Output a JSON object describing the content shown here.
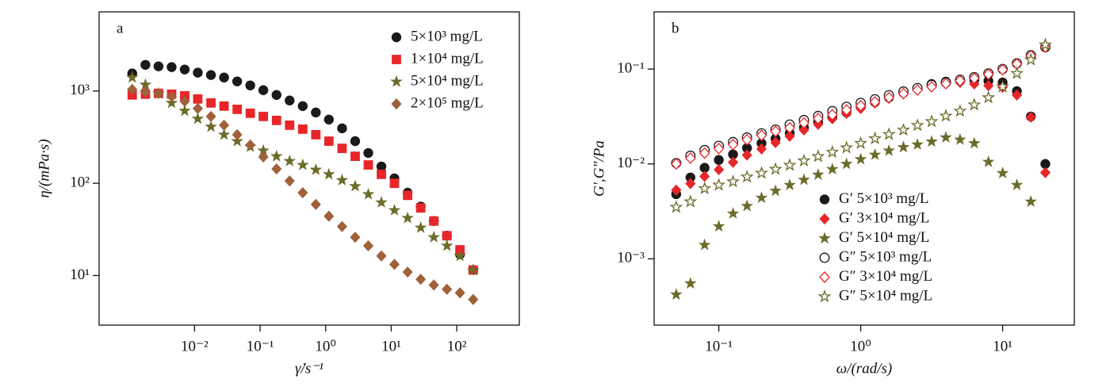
{
  "chart_data": [
    {
      "type": "scatter",
      "title": "a",
      "x_label": "γ̇/s⁻¹",
      "y_label": "η/(mPa·s)",
      "xscale": "log",
      "yscale": "log",
      "legend": "upper right",
      "xlim": [
        0.00035,
        900
      ],
      "ylim": [
        2.9,
        7200
      ],
      "xticks": [
        {
          "value": 0.01,
          "label": "10⁻²"
        },
        {
          "value": 0.1,
          "label": "10⁻¹"
        },
        {
          "value": 1,
          "label": "10⁰"
        },
        {
          "value": 10,
          "label": "10¹"
        },
        {
          "value": 100,
          "label": "10²"
        }
      ],
      "yticks": [
        {
          "value": 10,
          "label": "10¹"
        },
        {
          "value": 100,
          "label": "10²"
        },
        {
          "value": 1000,
          "label": "10³"
        }
      ],
      "x": [
        0.00112,
        0.00178,
        0.00282,
        0.00447,
        0.00708,
        0.0112,
        0.0178,
        0.0282,
        0.0447,
        0.0708,
        0.112,
        0.178,
        0.282,
        0.447,
        0.708,
        1.12,
        1.78,
        2.82,
        4.47,
        7.08,
        11.2,
        17.8,
        28.2,
        44.7,
        70.8,
        112,
        178
      ],
      "series": [
        {
          "name": "5×10³ mg/L",
          "color": "#1a1a1a",
          "marker": "circle",
          "filled": true,
          "values": [
            1550,
            1920,
            1850,
            1815,
            1710,
            1580,
            1490,
            1400,
            1270,
            1150,
            1020,
            906,
            789,
            686,
            585,
            490,
            394,
            286,
            213,
            152,
            113,
            79,
            56,
            39,
            27,
            17,
            11.5
          ]
        },
        {
          "name": "1×10⁴ mg/L",
          "color": "#e8262a",
          "marker": "square",
          "filled": true,
          "values": [
            906,
            924,
            943,
            924,
            887,
            820,
            743,
            686,
            633,
            574,
            530,
            480,
            426,
            386,
            336,
            286,
            239,
            196,
            158,
            125,
            100,
            74,
            54,
            39,
            27,
            19,
            11.5
          ]
        },
        {
          "name": "5×10⁴ mg/L",
          "color": "#6b6b2a",
          "marker": "star",
          "filled": true,
          "values": [
            1400,
            1170,
            943,
            743,
            609,
            500,
            410,
            336,
            286,
            249,
            226,
            196,
            174,
            158,
            140,
            125,
            108,
            93,
            76,
            62,
            51,
            42,
            33,
            26,
            21,
            16.3,
            11.5
          ]
        },
        {
          "name": "2×10⁵ mg/L",
          "color": "#a0603a",
          "marker": "diamond",
          "filled": true,
          "values": [
            1040,
            980,
            943,
            870,
            773,
            646,
            530,
            426,
            336,
            260,
            193,
            143,
            106,
            79,
            59,
            44,
            34,
            26,
            21,
            16.3,
            13.2,
            10.9,
            9.1,
            7.9,
            7.1,
            6.5,
            5.5
          ]
        }
      ]
    },
    {
      "type": "scatter",
      "title": "b",
      "x_label": "ω/(rad/s)",
      "y_label": "G′,G″/Pa",
      "xscale": "log",
      "yscale": "log",
      "legend": "lower center",
      "xlim": [
        0.035,
        32
      ],
      "ylim": [
        0.0002,
        0.4
      ],
      "xticks": [
        {
          "value": 0.1,
          "label": "10⁻¹"
        },
        {
          "value": 1,
          "label": "10⁰"
        },
        {
          "value": 10,
          "label": "10¹"
        }
      ],
      "yticks": [
        {
          "value": 0.001,
          "label": "10⁻³"
        },
        {
          "value": 0.01,
          "label": "10⁻²"
        },
        {
          "value": 0.1,
          "label": "10⁻¹"
        }
      ],
      "x": [
        0.0501,
        0.0631,
        0.0794,
        0.1,
        0.126,
        0.158,
        0.2,
        0.251,
        0.316,
        0.398,
        0.501,
        0.631,
        0.794,
        1,
        1.26,
        1.58,
        2,
        2.51,
        3.16,
        3.98,
        5.01,
        6.31,
        7.94,
        10,
        12.6,
        15.8,
        20
      ],
      "series": [
        {
          "name": "G′ 5×10³ mg/L",
          "color": "#1a1a1a",
          "marker": "circle",
          "filled": true,
          "values": [
            0.0048,
            0.0072,
            0.0091,
            0.011,
            0.0126,
            0.0147,
            0.0165,
            0.0185,
            0.0211,
            0.0242,
            0.0277,
            0.031,
            0.0348,
            0.0398,
            0.0447,
            0.0501,
            0.0562,
            0.0631,
            0.0695,
            0.0736,
            0.0764,
            0.0764,
            0.075,
            0.0722,
            0.0585,
            0.0316,
            0.01
          ]
        },
        {
          "name": "G′ 3×10⁴ mg/L",
          "color": "#e8262a",
          "marker": "diamond",
          "filled": true,
          "values": [
            0.0053,
            0.0062,
            0.0074,
            0.0087,
            0.0104,
            0.0124,
            0.0144,
            0.0168,
            0.0196,
            0.0228,
            0.0261,
            0.0299,
            0.0341,
            0.0383,
            0.0438,
            0.0492,
            0.0552,
            0.0607,
            0.0668,
            0.0708,
            0.0722,
            0.0695,
            0.0668,
            0.0643,
            0.0531,
            0.031,
            0.0081
          ]
        },
        {
          "name": "G′ 5×10⁴ mg/L",
          "color": "#6b6b2a",
          "marker": "star",
          "filled": true,
          "values": [
            0.00042,
            0.00055,
            0.0014,
            0.0022,
            0.003,
            0.0036,
            0.0044,
            0.0052,
            0.006,
            0.0068,
            0.0077,
            0.0088,
            0.01,
            0.0112,
            0.0125,
            0.0138,
            0.015,
            0.016,
            0.0172,
            0.019,
            0.018,
            0.0165,
            0.0105,
            0.008,
            0.006,
            0.004,
            null
          ]
        },
        {
          "name": "G″ 5×10³ mg/L",
          "color": "#1a1a1a",
          "marker": "circle",
          "filled": false,
          "values": [
            0.0102,
            0.0122,
            0.014,
            0.0155,
            0.017,
            0.019,
            0.021,
            0.023,
            0.026,
            0.029,
            0.032,
            0.036,
            0.04,
            0.044,
            0.048,
            0.053,
            0.058,
            0.063,
            0.068,
            0.072,
            0.077,
            0.082,
            0.09,
            0.1,
            0.115,
            0.14,
            0.17
          ]
        },
        {
          "name": "G″ 3×10⁴ mg/L",
          "color": "#e8262a",
          "marker": "diamond",
          "filled": false,
          "values": [
            0.01,
            0.0115,
            0.013,
            0.0145,
            0.016,
            0.018,
            0.02,
            0.022,
            0.024,
            0.027,
            0.03,
            0.033,
            0.037,
            0.041,
            0.045,
            0.05,
            0.055,
            0.06,
            0.065,
            0.07,
            0.075,
            0.08,
            0.088,
            0.098,
            0.113,
            0.138,
            0.17
          ]
        },
        {
          "name": "G″ 5×10⁴ mg/L",
          "color": "#6b6b2a",
          "marker": "star",
          "filled": false,
          "values": [
            0.0035,
            0.004,
            0.0055,
            0.006,
            0.0065,
            0.0073,
            0.008,
            0.0088,
            0.0097,
            0.0108,
            0.012,
            0.0133,
            0.0148,
            0.0165,
            0.0185,
            0.0205,
            0.0228,
            0.0255,
            0.028,
            0.032,
            0.036,
            0.042,
            0.05,
            0.065,
            0.09,
            0.125,
            0.18
          ]
        }
      ]
    }
  ]
}
